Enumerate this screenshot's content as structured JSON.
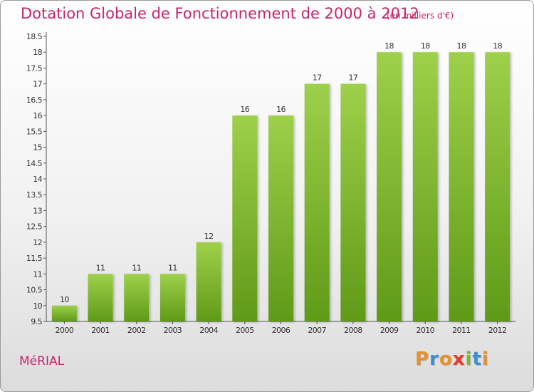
{
  "title": "Dotation Globale de Fonctionnement de 2000 à 2012",
  "subtitle": "(en milliers d'€)",
  "commune": "MéRIAL",
  "logo": {
    "letters": [
      "P",
      "r",
      "o",
      "x",
      "i",
      "t",
      "i"
    ],
    "colors": [
      "#e8902a",
      "#3a8fd6",
      "#e8902a",
      "#e8382a",
      "#7ab82e",
      "#3a8fd6",
      "#e8902a"
    ]
  },
  "colors": {
    "bar_top": "#9ed04a",
    "bar_bottom": "#5f9a18",
    "title": "#c8246a"
  },
  "chart_data": {
    "type": "bar",
    "title": "Dotation Globale de Fonctionnement de 2000 à 2012",
    "subtitle": "(en milliers d'€)",
    "xlabel": "",
    "ylabel": "",
    "categories": [
      "2000",
      "2001",
      "2002",
      "2003",
      "2004",
      "2005",
      "2006",
      "2007",
      "2008",
      "2009",
      "2010",
      "2011",
      "2012"
    ],
    "values": [
      10,
      11,
      11,
      11,
      12,
      16,
      16,
      17,
      17,
      18,
      18,
      18,
      18
    ],
    "ylim": [
      9.5,
      18.5
    ],
    "yticks": [
      "9.5",
      "10",
      "10.5",
      "11",
      "11.5",
      "12",
      "12.5",
      "13",
      "13.5",
      "14",
      "14.5",
      "15",
      "15.5",
      "16",
      "16.5",
      "17",
      "17.5",
      "18",
      "18.5"
    ],
    "grid": false
  }
}
